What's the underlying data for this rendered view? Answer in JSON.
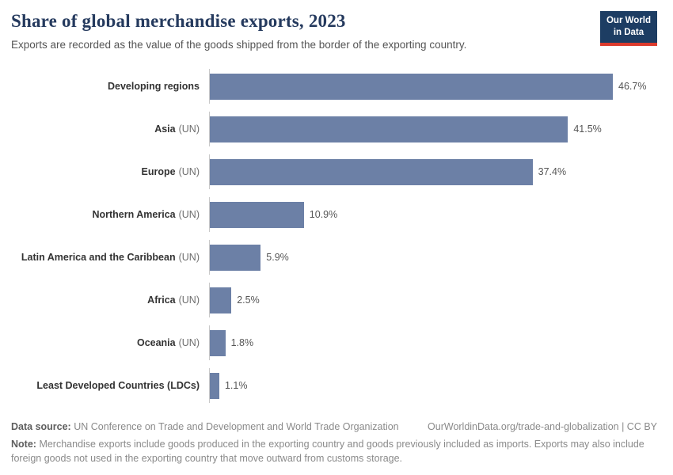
{
  "header": {
    "title": "Share of global merchandise exports, 2023",
    "subtitle": "Exports are recorded as the value of the goods shipped from the border of the exporting country.",
    "logo": {
      "line1": "Our World",
      "line2": "in Data",
      "bg_color": "#1d3d63",
      "accent_color": "#dc3a2d"
    }
  },
  "chart_data": {
    "type": "bar",
    "orientation": "horizontal",
    "title": "Share of global merchandise exports, 2023",
    "unit": "%",
    "axis_max": 46.7,
    "bar_color": "#6c80a6",
    "grid": false,
    "legend": false,
    "rows": [
      {
        "name": "Developing regions",
        "suffix": "",
        "value": 46.7,
        "value_label": "46.7%"
      },
      {
        "name": "Asia",
        "suffix": "(UN)",
        "value": 41.5,
        "value_label": "41.5%"
      },
      {
        "name": "Europe",
        "suffix": "(UN)",
        "value": 37.4,
        "value_label": "37.4%"
      },
      {
        "name": "Northern America",
        "suffix": "(UN)",
        "value": 10.9,
        "value_label": "10.9%"
      },
      {
        "name": "Latin America and the Caribbean",
        "suffix": "(UN)",
        "value": 5.9,
        "value_label": "5.9%"
      },
      {
        "name": "Africa",
        "suffix": "(UN)",
        "value": 2.5,
        "value_label": "2.5%"
      },
      {
        "name": "Oceania",
        "suffix": "(UN)",
        "value": 1.8,
        "value_label": "1.8%"
      },
      {
        "name": "Least Developed Countries (LDCs)",
        "suffix": "",
        "value": 1.1,
        "value_label": "1.1%"
      }
    ]
  },
  "footer": {
    "datasource_label": "Data source:",
    "datasource_text": "UN Conference on Trade and Development and World Trade Organization",
    "citation_text": "OurWorldinData.org/trade-and-globalization | CC BY",
    "note_label": "Note:",
    "note_text": "Merchandise exports include goods produced in the exporting country and goods previously included as imports. Exports may also include foreign goods not used in the exporting country that move outward from customs storage."
  }
}
